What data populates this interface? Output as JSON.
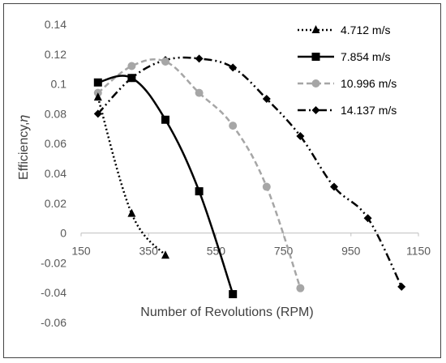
{
  "chart_data": {
    "type": "line",
    "xlabel": "Number of Revolutions (RPM)",
    "ylabel": "Efficiency,𝜂",
    "xlim": [
      150,
      1150
    ],
    "ylim": [
      -0.06,
      0.14
    ],
    "x_ticks": [
      "150",
      "350",
      "550",
      "750",
      "950",
      "1150"
    ],
    "x_tick_values": [
      150,
      350,
      550,
      750,
      950,
      1150
    ],
    "y_ticks": [
      "0.14",
      "0.12",
      "0.1",
      "0.08",
      "0.06",
      "0.04",
      "0.02",
      "0",
      "-0.02",
      "-0.04",
      "-0.06"
    ],
    "y_tick_values": [
      0.14,
      0.12,
      0.1,
      0.08,
      0.06,
      0.04,
      0.02,
      0,
      -0.02,
      -0.04,
      -0.06
    ],
    "legend_position": "top-right",
    "series": [
      {
        "name": "4.712 m/s",
        "color": "#000000",
        "dash": "dotted",
        "marker": "triangle",
        "x": [
          200,
          300,
          400
        ],
        "y": [
          0.091,
          0.013,
          -0.015
        ]
      },
      {
        "name": "7.854 m/s",
        "color": "#000000",
        "dash": "solid",
        "marker": "square",
        "x": [
          200,
          300,
          400,
          500,
          600
        ],
        "y": [
          0.101,
          0.104,
          0.076,
          0.028,
          -0.041
        ]
      },
      {
        "name": "10.996 m/s",
        "color": "#a6a6a6",
        "dash": "dashed",
        "marker": "circle",
        "x": [
          200,
          300,
          400,
          500,
          600,
          700,
          800
        ],
        "y": [
          0.094,
          0.112,
          0.115,
          0.094,
          0.072,
          0.031,
          -0.037
        ]
      },
      {
        "name": "14.137 m/s",
        "color": "#000000",
        "dash": "dash-dot-dot",
        "marker": "diamond",
        "x": [
          200,
          300,
          400,
          500,
          600,
          700,
          800,
          900,
          1000,
          1100
        ],
        "y": [
          0.08,
          0.104,
          0.116,
          0.117,
          0.111,
          0.09,
          0.065,
          0.031,
          0.01,
          -0.036
        ]
      }
    ]
  }
}
